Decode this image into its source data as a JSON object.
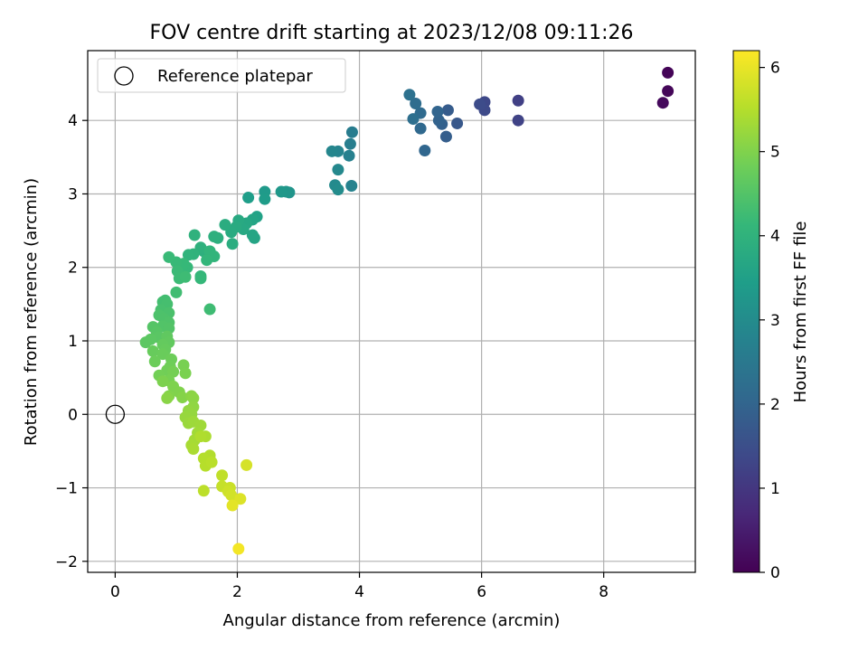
{
  "chart_data": {
    "type": "scatter",
    "title": "FOV centre drift starting at 2023/12/08 09:11:26",
    "xlabel": "Angular distance from reference (arcmin)",
    "ylabel": "Rotation from reference (arcmin)",
    "xlim": [
      -0.45,
      9.5
    ],
    "ylim": [
      -2.15,
      4.95
    ],
    "xticks": [
      0,
      2,
      4,
      6,
      8
    ],
    "yticks": [
      -2,
      -1,
      0,
      1,
      2,
      3,
      4
    ],
    "xtick_labels": [
      "0",
      "2",
      "4",
      "6",
      "8"
    ],
    "ytick_labels": [
      "−2",
      "−1",
      "0",
      "1",
      "2",
      "3",
      "4"
    ],
    "grid": true,
    "legend": {
      "position": "top-left",
      "entries": [
        "Reference platepar"
      ]
    },
    "reference_point": {
      "x": 0,
      "y": 0,
      "marker": "open-circle",
      "edge_color": "#000000"
    },
    "colorbar": {
      "label": "Hours from first FF file",
      "range": [
        0,
        6.2
      ],
      "ticks": [
        0,
        1,
        2,
        3,
        4,
        5,
        6
      ],
      "tick_labels": [
        "0",
        "1",
        "2",
        "3",
        "4",
        "5",
        "6"
      ],
      "colormap": "viridis",
      "colormap_stops": [
        "#440154",
        "#482878",
        "#3e4989",
        "#31688e",
        "#26828e",
        "#1f9e89",
        "#35b779",
        "#6ece58",
        "#b5de2b",
        "#fde725"
      ]
    },
    "marker_size": 6.5,
    "series": [
      {
        "points": [
          [
            9.05,
            4.65,
            0.05
          ],
          [
            9.05,
            4.4,
            0.1
          ],
          [
            8.97,
            4.24,
            0.15
          ],
          [
            6.6,
            4.27,
            1.2
          ],
          [
            6.6,
            4.0,
            1.25
          ],
          [
            6.05,
            4.25,
            1.35
          ],
          [
            6.05,
            4.14,
            1.4
          ],
          [
            5.97,
            4.22,
            1.45
          ],
          [
            5.6,
            3.96,
            1.7
          ],
          [
            5.45,
            4.14,
            1.8
          ],
          [
            5.42,
            3.78,
            1.85
          ],
          [
            5.35,
            3.95,
            1.9
          ],
          [
            5.3,
            4.0,
            1.95
          ],
          [
            5.28,
            4.12,
            2.0
          ],
          [
            5.07,
            3.59,
            2.05
          ],
          [
            5.0,
            3.89,
            2.1
          ],
          [
            5.0,
            4.1,
            2.15
          ],
          [
            4.92,
            4.23,
            2.2
          ],
          [
            4.88,
            4.02,
            2.25
          ],
          [
            4.82,
            4.35,
            2.3
          ],
          [
            3.88,
            3.84,
            2.6
          ],
          [
            3.85,
            3.68,
            2.65
          ],
          [
            3.83,
            3.52,
            2.7
          ],
          [
            3.87,
            3.11,
            2.75
          ],
          [
            3.65,
            3.58,
            2.8
          ],
          [
            3.55,
            3.58,
            2.85
          ],
          [
            3.65,
            3.33,
            2.9
          ],
          [
            3.6,
            3.12,
            2.95
          ],
          [
            3.65,
            3.06,
            3.0
          ],
          [
            2.85,
            3.02,
            3.2
          ],
          [
            2.8,
            3.03,
            3.25
          ],
          [
            2.72,
            3.03,
            3.3
          ],
          [
            2.45,
            3.03,
            3.35
          ],
          [
            2.45,
            2.93,
            3.4
          ],
          [
            2.18,
            2.95,
            3.45
          ],
          [
            2.32,
            2.69,
            3.55
          ],
          [
            2.25,
            2.65,
            3.6
          ],
          [
            2.28,
            2.4,
            3.62
          ],
          [
            2.25,
            2.44,
            3.65
          ],
          [
            2.15,
            2.6,
            3.7
          ],
          [
            2.1,
            2.52,
            3.72
          ],
          [
            2.02,
            2.64,
            3.75
          ],
          [
            1.98,
            2.55,
            3.78
          ],
          [
            1.9,
            2.48,
            3.8
          ],
          [
            1.8,
            2.58,
            3.82
          ],
          [
            1.92,
            2.32,
            3.85
          ],
          [
            1.68,
            2.4,
            3.88
          ],
          [
            1.62,
            2.42,
            3.9
          ],
          [
            1.45,
            2.22,
            3.92
          ],
          [
            1.4,
            2.27,
            3.95
          ],
          [
            1.3,
            2.44,
            3.98
          ],
          [
            1.28,
            2.18,
            4.0
          ],
          [
            1.2,
            2.17,
            4.02
          ],
          [
            1.55,
            2.22,
            4.04
          ],
          [
            1.62,
            2.15,
            4.05
          ],
          [
            1.5,
            2.1,
            4.07
          ],
          [
            1.4,
            1.88,
            4.1
          ],
          [
            1.4,
            1.85,
            4.12
          ],
          [
            1.18,
            2.0,
            4.14
          ],
          [
            1.12,
            2.05,
            4.15
          ],
          [
            1.0,
            2.07,
            4.17
          ],
          [
            0.88,
            2.14,
            4.18
          ],
          [
            1.02,
            1.95,
            4.2
          ],
          [
            1.05,
            1.85,
            4.22
          ],
          [
            1.15,
            1.87,
            4.24
          ],
          [
            1.55,
            1.43,
            4.26
          ],
          [
            1.0,
            1.66,
            4.28
          ],
          [
            0.82,
            1.55,
            4.3
          ],
          [
            0.78,
            1.53,
            4.32
          ],
          [
            0.85,
            1.5,
            4.34
          ],
          [
            0.75,
            1.42,
            4.36
          ],
          [
            0.88,
            1.38,
            4.4
          ],
          [
            0.72,
            1.35,
            4.42
          ],
          [
            0.8,
            1.3,
            4.44
          ],
          [
            0.88,
            1.25,
            4.46
          ],
          [
            0.78,
            1.2,
            4.48
          ],
          [
            0.88,
            1.17,
            4.5
          ],
          [
            0.62,
            1.19,
            4.52
          ],
          [
            0.68,
            1.12,
            4.55
          ],
          [
            0.7,
            1.05,
            4.58
          ],
          [
            0.58,
            1.02,
            4.6
          ],
          [
            0.5,
            0.98,
            4.62
          ],
          [
            0.85,
            1.06,
            4.65
          ],
          [
            0.88,
            0.98,
            4.68
          ],
          [
            0.78,
            0.95,
            4.7
          ],
          [
            0.82,
            0.88,
            4.72
          ],
          [
            0.62,
            0.86,
            4.74
          ],
          [
            0.78,
            0.82,
            4.76
          ],
          [
            0.65,
            0.72,
            4.78
          ],
          [
            0.92,
            0.75,
            4.8
          ],
          [
            0.9,
            0.65,
            4.82
          ],
          [
            0.85,
            0.6,
            4.84
          ],
          [
            0.72,
            0.53,
            4.86
          ],
          [
            0.95,
            0.58,
            4.88
          ],
          [
            0.88,
            0.46,
            4.9
          ],
          [
            1.12,
            0.67,
            4.92
          ],
          [
            1.15,
            0.56,
            4.94
          ],
          [
            0.78,
            0.45,
            4.96
          ],
          [
            0.95,
            0.38,
            4.98
          ],
          [
            1.05,
            0.3,
            5.0
          ],
          [
            0.88,
            0.25,
            5.02
          ],
          [
            1.1,
            0.23,
            5.05
          ],
          [
            0.85,
            0.22,
            5.08
          ],
          [
            1.25,
            0.25,
            5.1
          ],
          [
            1.28,
            0.22,
            5.12
          ],
          [
            1.28,
            0.1,
            5.15
          ],
          [
            1.2,
            0.05,
            5.18
          ],
          [
            1.25,
            0.0,
            5.2
          ],
          [
            1.15,
            -0.04,
            5.22
          ],
          [
            1.2,
            -0.12,
            5.25
          ],
          [
            1.28,
            -0.1,
            5.28
          ],
          [
            1.4,
            -0.15,
            5.3
          ],
          [
            1.35,
            -0.25,
            5.32
          ],
          [
            1.3,
            -0.35,
            5.35
          ],
          [
            1.25,
            -0.42,
            5.38
          ],
          [
            1.28,
            -0.47,
            5.4
          ],
          [
            1.48,
            -0.3,
            5.42
          ],
          [
            1.4,
            -0.3,
            5.45
          ],
          [
            1.55,
            -0.56,
            5.48
          ],
          [
            1.45,
            -0.6,
            5.5
          ],
          [
            1.48,
            -0.7,
            5.52
          ],
          [
            1.58,
            -0.65,
            5.55
          ],
          [
            1.45,
            -1.04,
            5.58
          ],
          [
            1.75,
            -0.83,
            5.62
          ],
          [
            1.75,
            -0.98,
            5.66
          ],
          [
            1.88,
            -1.0,
            5.7
          ],
          [
            1.85,
            -1.05,
            5.74
          ],
          [
            1.9,
            -1.1,
            5.78
          ],
          [
            2.15,
            -0.69,
            5.82
          ],
          [
            2.05,
            -1.15,
            5.88
          ],
          [
            1.92,
            -1.24,
            5.95
          ],
          [
            2.02,
            -1.83,
            6.1
          ]
        ]
      }
    ]
  }
}
